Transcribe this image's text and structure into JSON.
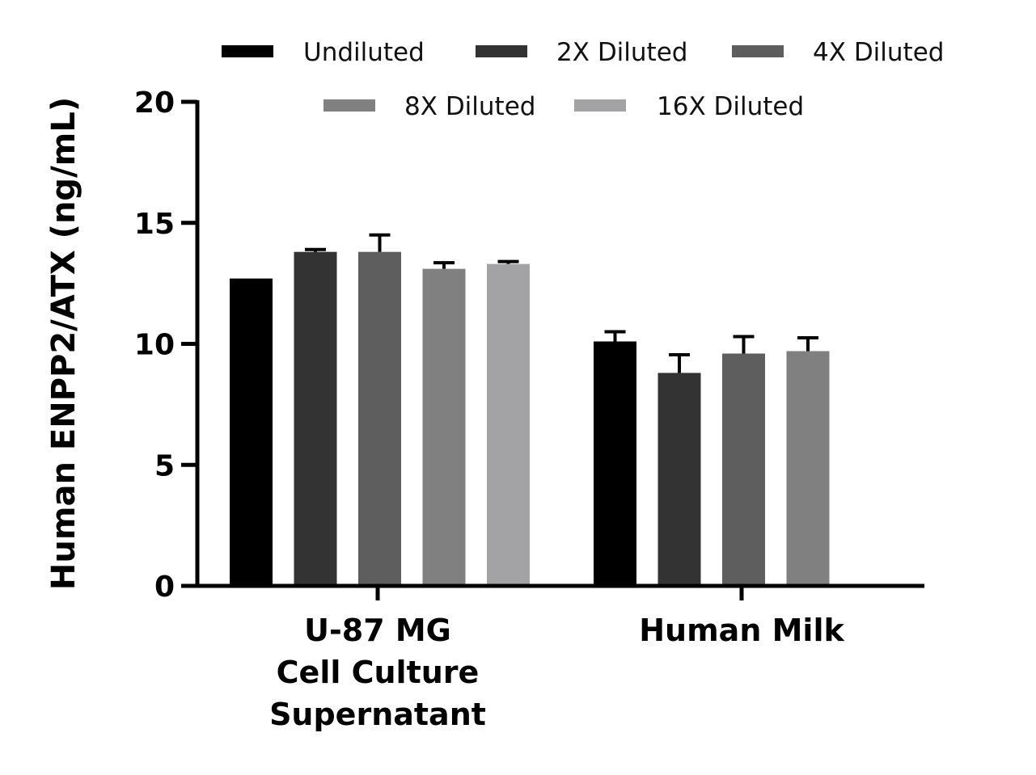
{
  "chart_data": {
    "type": "bar",
    "ylabel": "Human ENPP2/ATX (ng/mL)",
    "ylim": [
      0,
      20
    ],
    "yticks": [
      0,
      5,
      10,
      15,
      20
    ],
    "grid": false,
    "legend_position": "top",
    "categories": [
      [
        "U-87 MG",
        "Cell Culture",
        "Supernatant"
      ],
      [
        "Human Milk"
      ]
    ],
    "series": [
      {
        "name": "Undiluted",
        "color": "#000000",
        "values": [
          12.7,
          10.1
        ],
        "errors": [
          0,
          0.4
        ]
      },
      {
        "name": "2X Diluted",
        "color": "#333333",
        "values": [
          13.8,
          8.8
        ],
        "errors": [
          0.1,
          0.75
        ]
      },
      {
        "name": "4X Diluted",
        "color": "#5e5e5e",
        "values": [
          13.8,
          9.6
        ],
        "errors": [
          0.7,
          0.7
        ]
      },
      {
        "name": "8X Diluted",
        "color": "#808080",
        "values": [
          13.1,
          9.7
        ],
        "errors": [
          0.25,
          0.55
        ]
      },
      {
        "name": "16X Diluted",
        "color": "#a3a3a5",
        "values": [
          13.3,
          null
        ],
        "errors": [
          0.1,
          null
        ]
      }
    ]
  }
}
